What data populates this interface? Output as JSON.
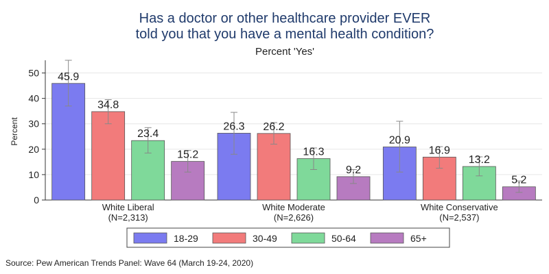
{
  "chart_data": {
    "type": "bar",
    "title_lines": [
      "Has a doctor or other healthcare provider EVER",
      "told you that you have a mental health condition?"
    ],
    "subtitle": "Percent 'Yes'",
    "ylabel": "Percent",
    "ylim": [
      0,
      55
    ],
    "yticks": [
      0,
      10,
      20,
      30,
      40,
      50
    ],
    "grid": true,
    "legend_position": "bottom",
    "categories": [
      {
        "label": "White Liberal",
        "sublabel": "(N=2,313)"
      },
      {
        "label": "White Moderate",
        "sublabel": "(N=2,626)"
      },
      {
        "label": "White Conservative",
        "sublabel": "(N=2,537)"
      }
    ],
    "series": [
      {
        "name": "18-29",
        "color": "#7b7bf0",
        "values": [
          45.9,
          26.3,
          20.9
        ],
        "labels": [
          "45.9",
          "26.3",
          "20.9"
        ],
        "ci_low": [
          37.0,
          18.0,
          11.0
        ],
        "ci_high": [
          55.0,
          34.5,
          31.0
        ]
      },
      {
        "name": "30-49",
        "color": "#f27b7b",
        "values": [
          34.8,
          26.2,
          16.9
        ],
        "labels": [
          "34.8",
          "26.2",
          "16.9"
        ],
        "ci_low": [
          30.0,
          22.0,
          12.5
        ],
        "ci_high": [
          39.5,
          30.5,
          21.0
        ]
      },
      {
        "name": "50-64",
        "color": "#7fd99a",
        "values": [
          23.4,
          16.3,
          13.2
        ],
        "labels": [
          "23.4",
          "16.3",
          "13.2"
        ],
        "ci_low": [
          18.5,
          12.0,
          9.5
        ],
        "ci_high": [
          28.5,
          20.5,
          17.0
        ]
      },
      {
        "name": "65+",
        "color": "#b77bc0",
        "values": [
          15.2,
          9.2,
          5.2
        ],
        "labels": [
          "15.2",
          "9.2",
          "5.2"
        ],
        "ci_low": [
          11.0,
          6.5,
          3.0
        ],
        "ci_high": [
          19.5,
          12.0,
          7.5
        ]
      }
    ],
    "source": "Source: Pew American Trends Panel: Wave 64 (March 19-24, 2020)"
  }
}
